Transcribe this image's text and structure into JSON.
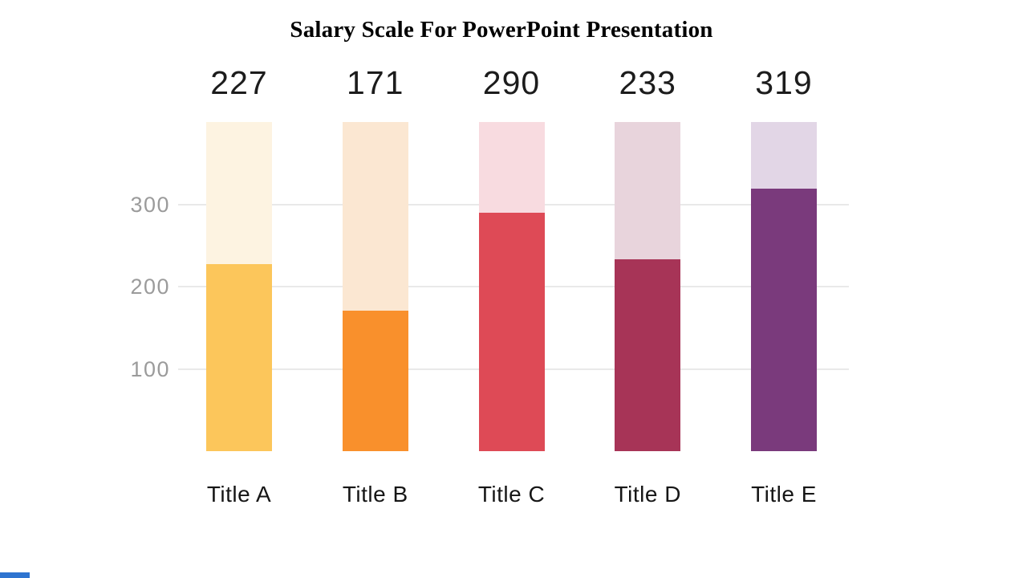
{
  "title": "Salary Scale For PowerPoint Presentation",
  "chart_data": {
    "type": "bar",
    "title": "Salary Scale For PowerPoint Presentation",
    "categories": [
      "Title A",
      "Title B",
      "Title C",
      "Title D",
      "Title E"
    ],
    "values": [
      227,
      171,
      290,
      233,
      319
    ],
    "xlabel": "",
    "ylabel": "",
    "yticks": [
      300,
      200,
      100
    ],
    "ylim": [
      0,
      400
    ],
    "grid": true,
    "legend_position": "none",
    "value_labels": "above bars",
    "bar_colors": [
      "#FCC65B",
      "#F9902C",
      "#DE4A56",
      "#A73457",
      "#7A3A7C"
    ],
    "track_colors": [
      "#FDF3E1",
      "#FBE7D2",
      "#F8DBE0",
      "#E8D4DC",
      "#E2D6E6"
    ],
    "grid_color": "#e9e9e9",
    "tick_label_color": "#9b9b9b",
    "text_color": "#161616",
    "accent_bar_color": "#2e74d0"
  }
}
